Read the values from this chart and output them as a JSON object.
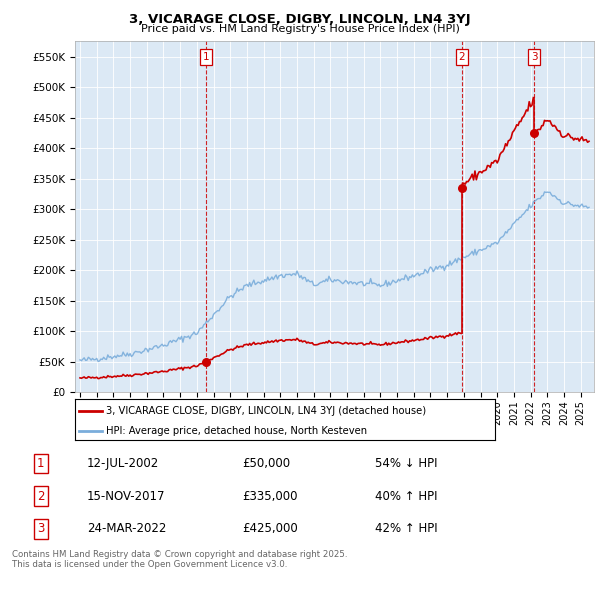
{
  "title": "3, VICARAGE CLOSE, DIGBY, LINCOLN, LN4 3YJ",
  "subtitle": "Price paid vs. HM Land Registry's House Price Index (HPI)",
  "transactions": [
    {
      "date": 2002.53,
      "price": 50000,
      "label": "1"
    },
    {
      "date": 2017.87,
      "price": 335000,
      "label": "2"
    },
    {
      "date": 2022.22,
      "price": 425000,
      "label": "3"
    }
  ],
  "transaction_dates_vline": [
    2002.53,
    2017.87,
    2022.22
  ],
  "legend_property": "3, VICARAGE CLOSE, DIGBY, LINCOLN, LN4 3YJ (detached house)",
  "legend_hpi": "HPI: Average price, detached house, North Kesteven",
  "table_rows": [
    [
      "1",
      "12-JUL-2002",
      "£50,000",
      "54% ↓ HPI"
    ],
    [
      "2",
      "15-NOV-2017",
      "£335,000",
      "40% ↑ HPI"
    ],
    [
      "3",
      "24-MAR-2022",
      "£425,000",
      "42% ↑ HPI"
    ]
  ],
  "footer": "Contains HM Land Registry data © Crown copyright and database right 2025.\nThis data is licensed under the Open Government Licence v3.0.",
  "ylim": [
    0,
    575000
  ],
  "yticks": [
    0,
    50000,
    100000,
    150000,
    200000,
    250000,
    300000,
    350000,
    400000,
    450000,
    500000,
    550000
  ],
  "xlim_start": 1994.7,
  "xlim_end": 2025.8,
  "property_color": "#cc0000",
  "hpi_color": "#7aaddb",
  "vline_color": "#cc0000",
  "plot_bg_color": "#dce9f5",
  "grid_color": "#ffffff"
}
